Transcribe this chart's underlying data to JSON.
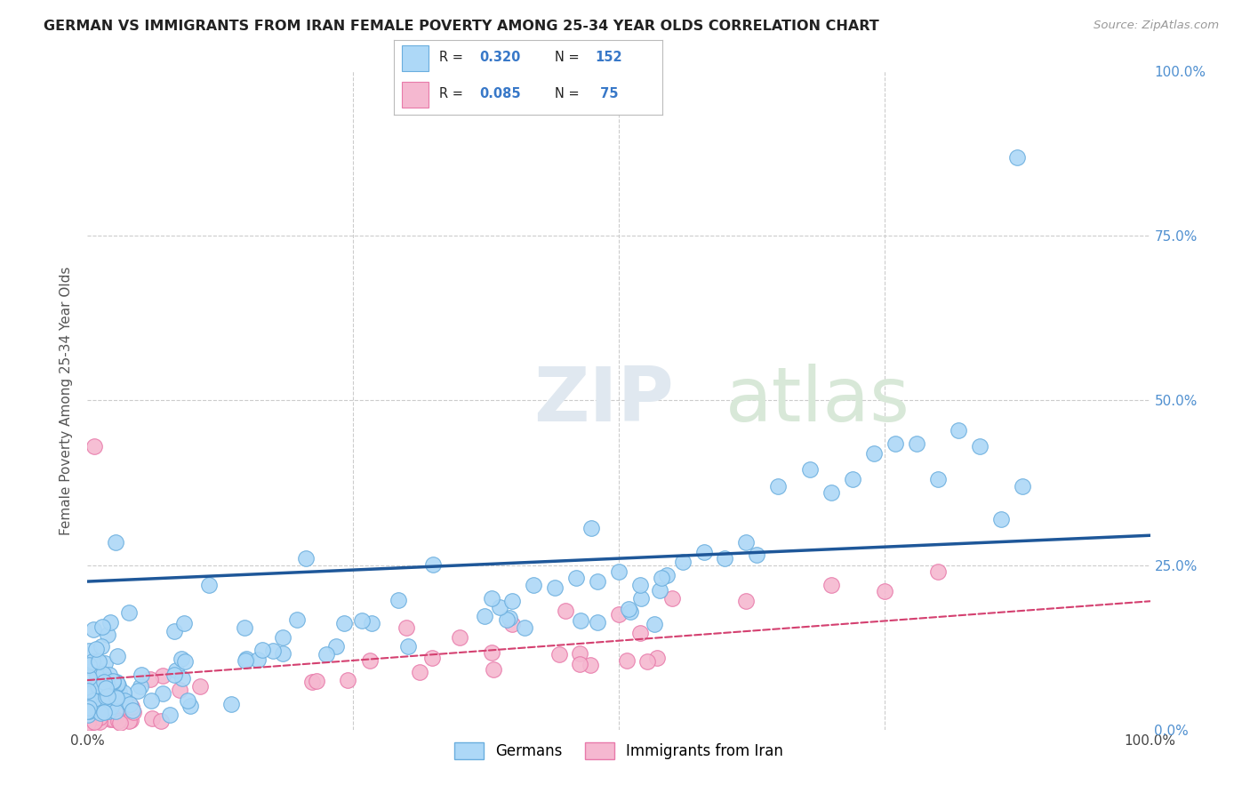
{
  "title": "GERMAN VS IMMIGRANTS FROM IRAN FEMALE POVERTY AMONG 25-34 YEAR OLDS CORRELATION CHART",
  "source": "Source: ZipAtlas.com",
  "ylabel": "Female Poverty Among 25-34 Year Olds",
  "watermark_zip": "ZIP",
  "watermark_atlas": "atlas",
  "german_color": "#add8f7",
  "german_edge_color": "#6aaede",
  "iran_color": "#f5b8d0",
  "iran_edge_color": "#e87aaa",
  "german_line_color": "#1e5799",
  "iran_line_color": "#d44070",
  "legend_R_german": "0.320",
  "legend_N_german": "152",
  "legend_R_iran": "0.085",
  "legend_N_iran": " 75",
  "stat_color": "#3878c8",
  "background_color": "#ffffff",
  "grid_color": "#cccccc",
  "right_tick_color": "#5090d0",
  "title_color": "#222222",
  "source_color": "#999999",
  "ylabel_color": "#555555"
}
